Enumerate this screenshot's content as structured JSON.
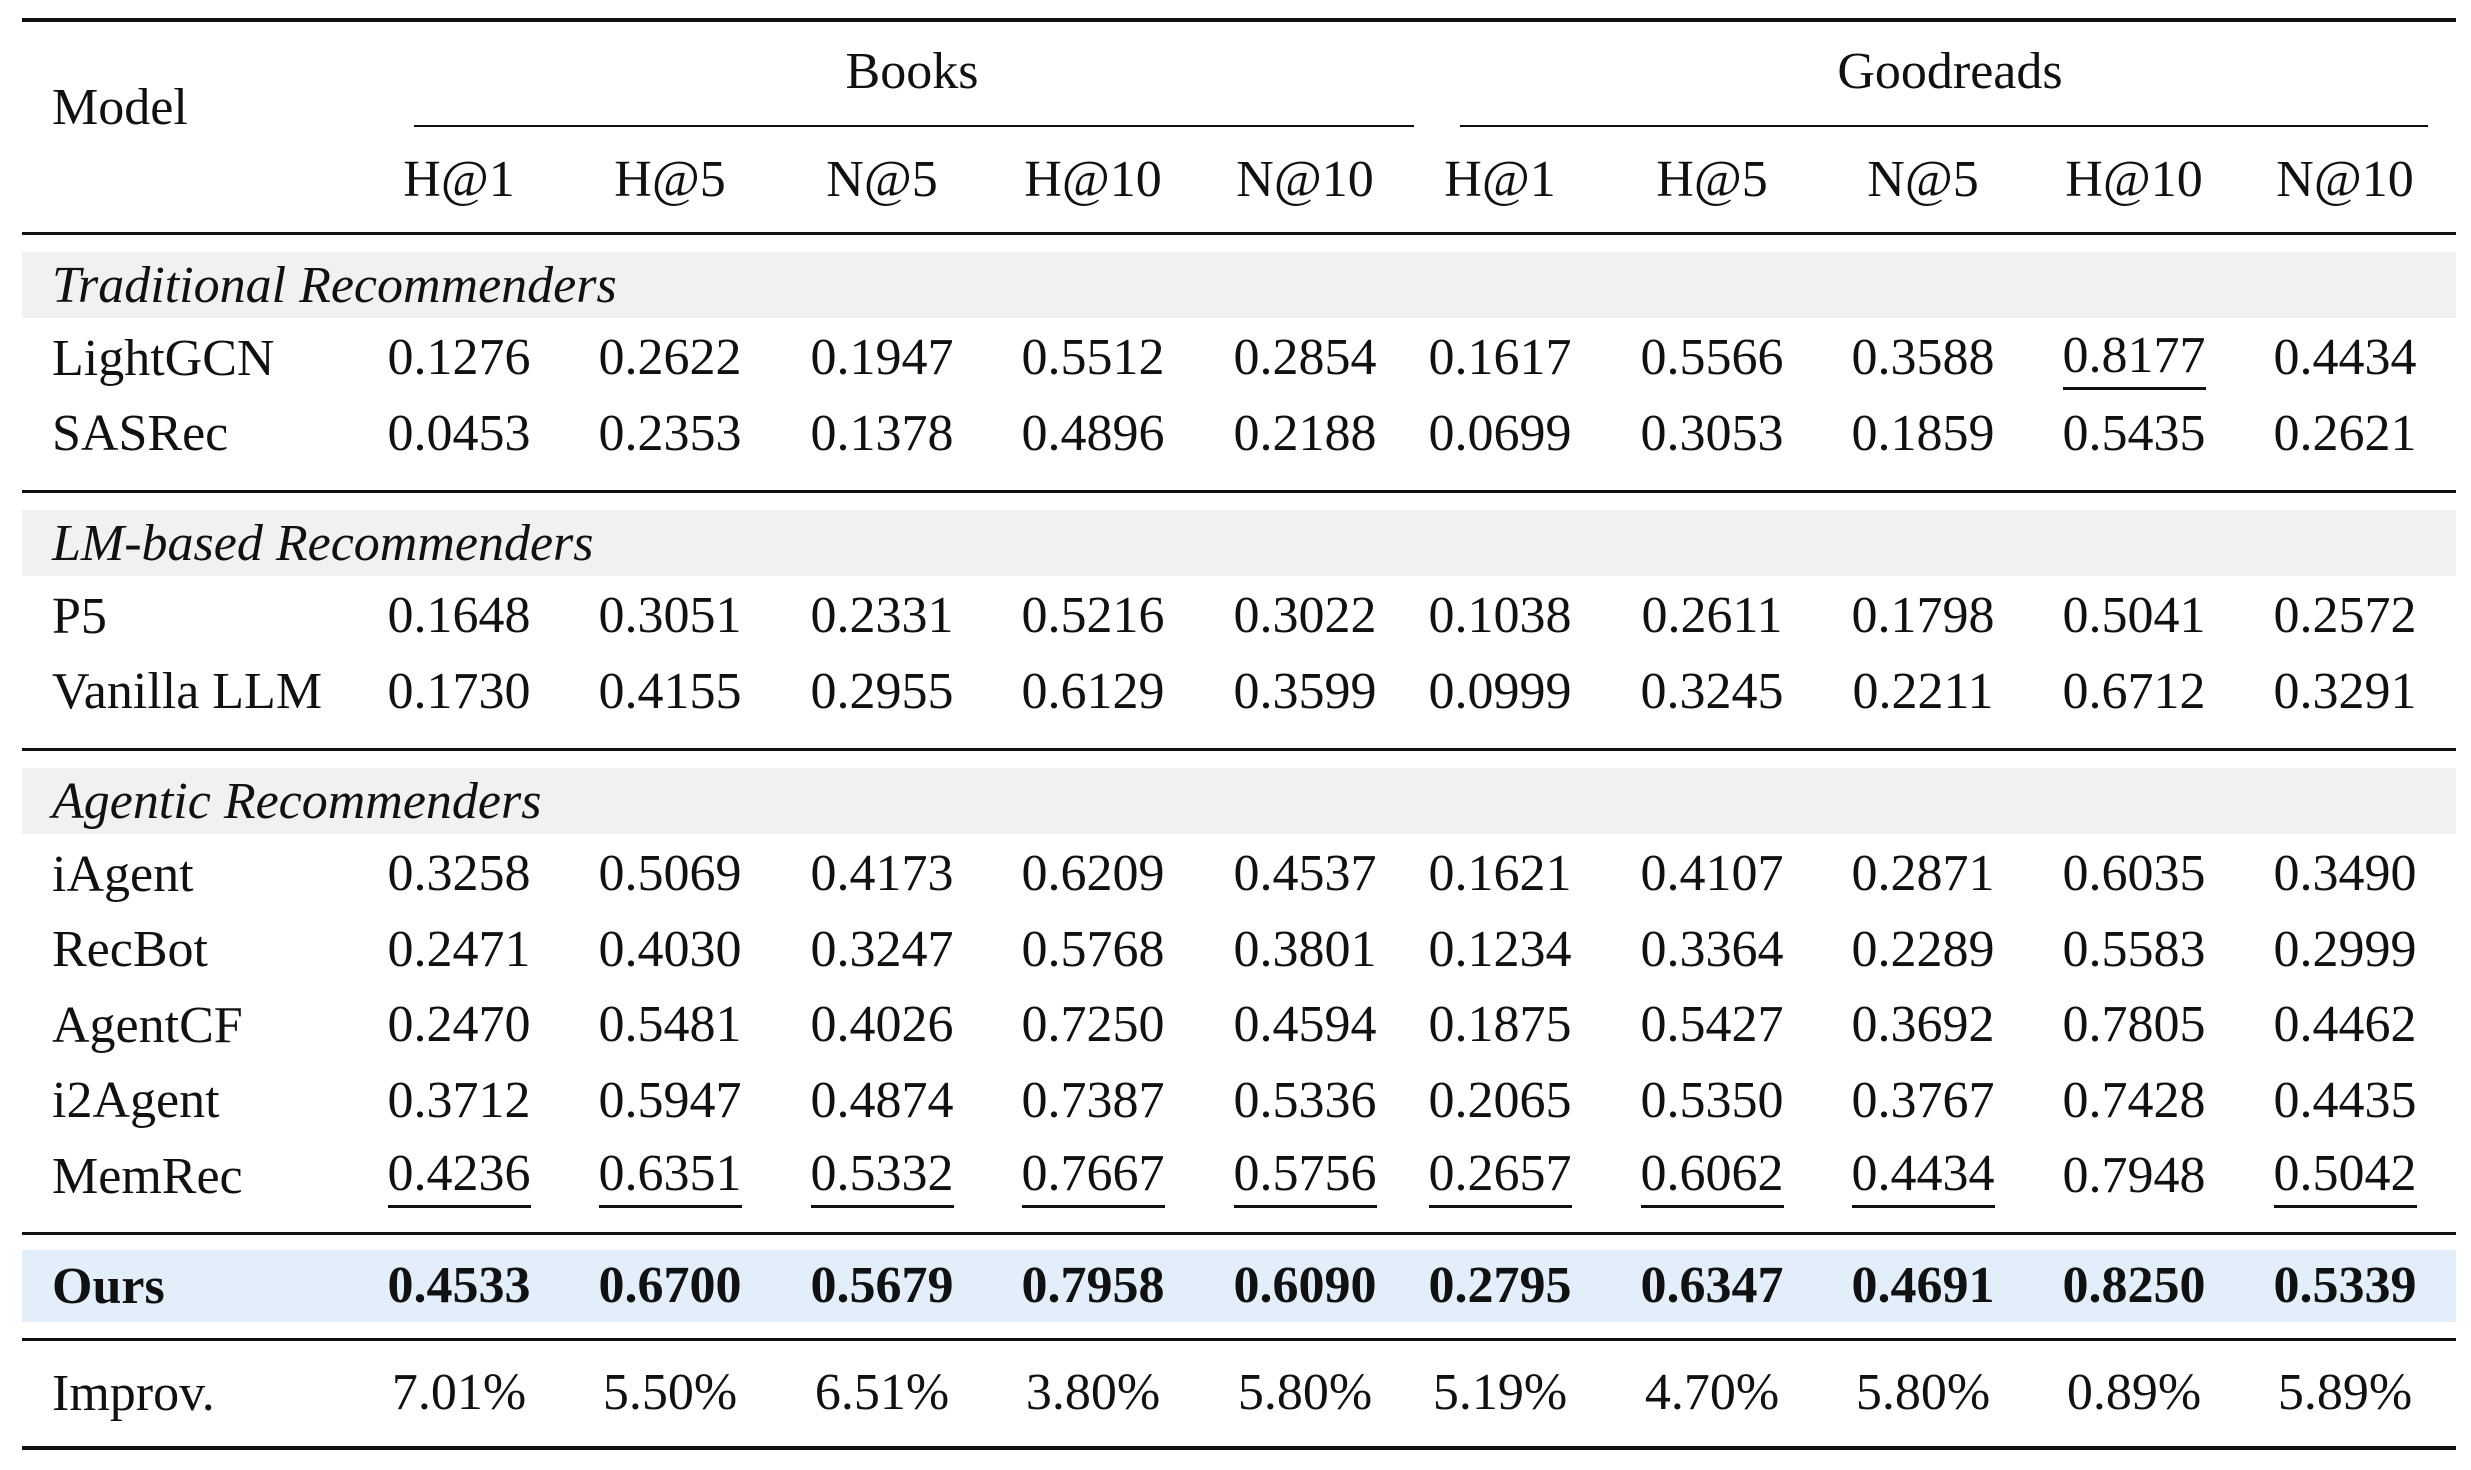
{
  "header": {
    "model_label": "Model",
    "datasets": [
      "Books",
      "Goodreads"
    ],
    "metrics": [
      "H@1",
      "H@5",
      "N@5",
      "H@10",
      "N@10",
      "H@1",
      "H@5",
      "N@5",
      "H@10",
      "N@10"
    ]
  },
  "sections": [
    {
      "title": "Traditional Recommenders",
      "rows": [
        {
          "model": "LightGCN",
          "values": [
            "0.1276",
            "0.2622",
            "0.1947",
            "0.5512",
            "0.2854",
            "0.1617",
            "0.5566",
            "0.3588",
            "0.8177",
            "0.4434"
          ],
          "underline": [
            8
          ]
        },
        {
          "model": "SASRec",
          "values": [
            "0.0453",
            "0.2353",
            "0.1378",
            "0.4896",
            "0.2188",
            "0.0699",
            "0.3053",
            "0.1859",
            "0.5435",
            "0.2621"
          ],
          "underline": []
        }
      ]
    },
    {
      "title": "LM-based Recommenders",
      "rows": [
        {
          "model": "P5",
          "values": [
            "0.1648",
            "0.3051",
            "0.2331",
            "0.5216",
            "0.3022",
            "0.1038",
            "0.2611",
            "0.1798",
            "0.5041",
            "0.2572"
          ],
          "underline": []
        },
        {
          "model": "Vanilla LLM",
          "values": [
            "0.1730",
            "0.4155",
            "0.2955",
            "0.6129",
            "0.3599",
            "0.0999",
            "0.3245",
            "0.2211",
            "0.6712",
            "0.3291"
          ],
          "underline": []
        }
      ]
    },
    {
      "title": "Agentic Recommenders",
      "rows": [
        {
          "model": "iAgent",
          "values": [
            "0.3258",
            "0.5069",
            "0.4173",
            "0.6209",
            "0.4537",
            "0.1621",
            "0.4107",
            "0.2871",
            "0.6035",
            "0.3490"
          ],
          "underline": []
        },
        {
          "model": "RecBot",
          "values": [
            "0.2471",
            "0.4030",
            "0.3247",
            "0.5768",
            "0.3801",
            "0.1234",
            "0.3364",
            "0.2289",
            "0.5583",
            "0.2999"
          ],
          "underline": []
        },
        {
          "model": "AgentCF",
          "values": [
            "0.2470",
            "0.5481",
            "0.4026",
            "0.7250",
            "0.4594",
            "0.1875",
            "0.5427",
            "0.3692",
            "0.7805",
            "0.4462"
          ],
          "underline": []
        },
        {
          "model": "i2Agent",
          "values": [
            "0.3712",
            "0.5947",
            "0.4874",
            "0.7387",
            "0.5336",
            "0.2065",
            "0.5350",
            "0.3767",
            "0.7428",
            "0.4435"
          ],
          "underline": []
        },
        {
          "model": "MemRec",
          "values": [
            "0.4236",
            "0.6351",
            "0.5332",
            "0.7667",
            "0.5756",
            "0.2657",
            "0.6062",
            "0.4434",
            "0.7948",
            "0.5042"
          ],
          "underline": [
            0,
            1,
            2,
            3,
            4,
            5,
            6,
            7,
            9
          ]
        }
      ]
    }
  ],
  "ours": {
    "model": "Ours",
    "values": [
      "0.4533",
      "0.6700",
      "0.5679",
      "0.7958",
      "0.6090",
      "0.2795",
      "0.6347",
      "0.4691",
      "0.8250",
      "0.5339"
    ]
  },
  "improv": {
    "model": "Improv.",
    "values": [
      "7.01%",
      "5.50%",
      "6.51%",
      "3.80%",
      "5.80%",
      "5.19%",
      "4.70%",
      "5.80%",
      "0.89%",
      "5.89%"
    ]
  },
  "colors": {
    "ours_highlight": "#e3eefb",
    "section_band": "#f1f1f1",
    "text": "#111111"
  }
}
